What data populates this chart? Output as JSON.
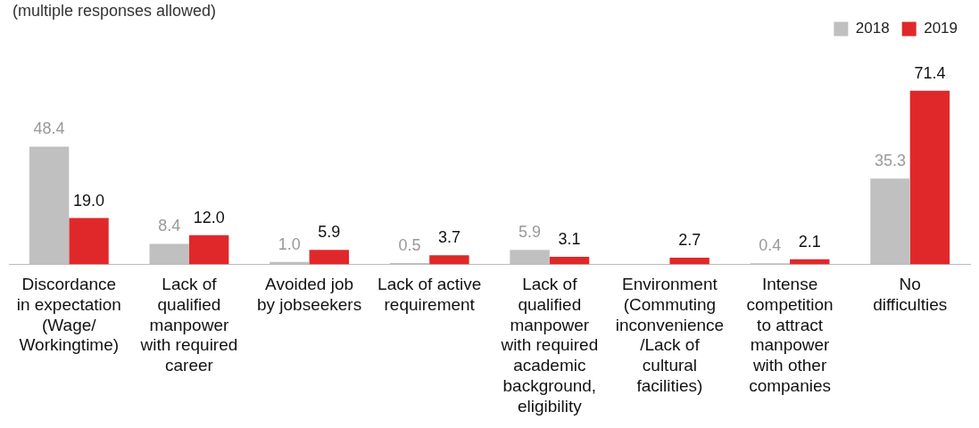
{
  "chart_data": {
    "type": "bar",
    "subtitle": "(multiple responses allowed)",
    "categories": [
      "Discordance\nin expectation\n(Wage/\nWorkingtime)",
      "Lack of\nqualified\nmanpower\nwith required\ncareer",
      "Avoided job\nby jobseekers",
      "Lack of active\nrequirement",
      "Lack of\nqualified\nmanpower\nwith required\nacademic\nbackground,\neligibility",
      "Environment\n(Commuting\ninconvenience\n/Lack of\ncultural\nfacilities)",
      "Intense\ncompetition\nto attract\nmanpower\nwith other\ncompanies",
      "No\ndifficulties"
    ],
    "series": [
      {
        "name": "2018",
        "color": "#c0c0c0",
        "values": [
          48.4,
          8.4,
          1.0,
          0.5,
          5.9,
          null,
          0.4,
          35.3
        ],
        "value_labels": [
          "48.4",
          "8.4",
          "1.0",
          "0.5",
          "5.9",
          null,
          "0.4",
          "35.3"
        ]
      },
      {
        "name": "2019",
        "color": "#e0282a",
        "values": [
          19.0,
          12.0,
          5.9,
          3.7,
          3.1,
          2.7,
          2.1,
          71.4
        ],
        "value_labels": [
          "19.0",
          "12.0",
          "5.9",
          "3.7",
          "3.1",
          "2.7",
          "2.1",
          "71.4"
        ]
      }
    ],
    "legend": "top right",
    "grid": false
  }
}
